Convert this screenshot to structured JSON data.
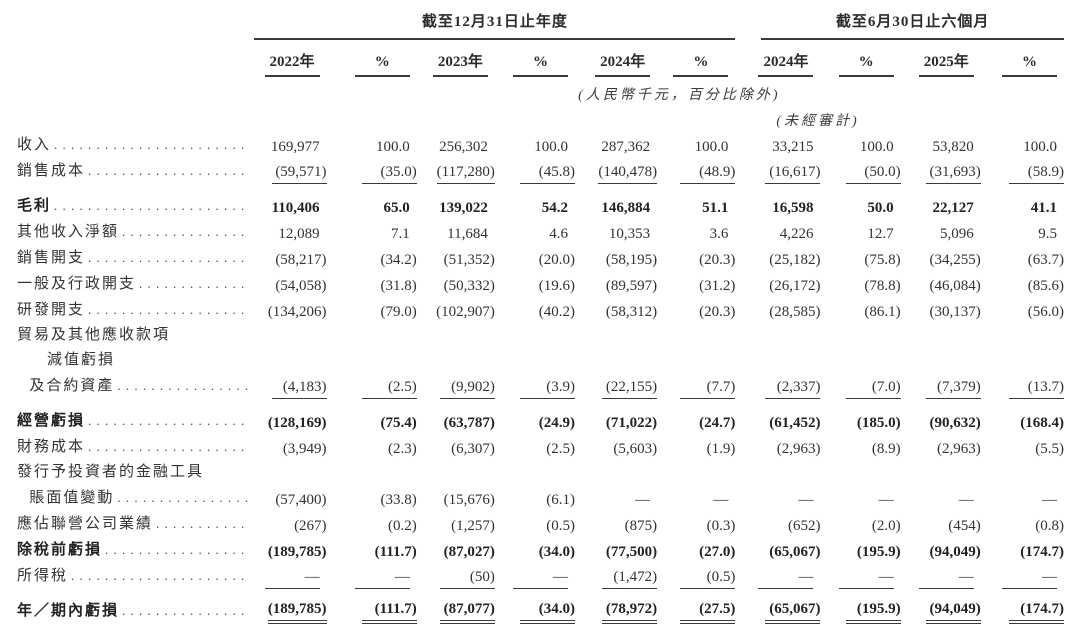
{
  "header": {
    "group_annual": "截至12月31日止年度",
    "group_interim": "截至6月30日止六個月",
    "columns": [
      "2022年",
      "%",
      "2023年",
      "%",
      "2024年",
      "%",
      "2024年",
      "%",
      "2025年",
      "%"
    ],
    "unit_note": "(人民幣千元，百分比除外)",
    "unaudited_note": "(未經審計)"
  },
  "chart_data": {
    "type": "table",
    "title": "綜合損益表概要",
    "unit": "人民幣千元，百分比除外",
    "column_groups": [
      "截至12月31日止年度",
      "截至6月30日止六個月"
    ],
    "columns": [
      "2022年",
      "%",
      "2023年",
      "%",
      "2024年",
      "%",
      "2024年(未經審計)",
      "%",
      "2025年",
      "%"
    ]
  },
  "rows": [
    {
      "label_lines": [
        {
          "text": "收入",
          "indent": 0,
          "dots": true
        }
      ],
      "bold": false,
      "underline": "none",
      "values": [
        "169,977",
        "100.0",
        "256,302",
        "100.0",
        "287,362",
        "100.0",
        "33,215",
        "100.0",
        "53,820",
        "100.0"
      ]
    },
    {
      "label_lines": [
        {
          "text": "銷售成本",
          "indent": 0,
          "dots": true
        }
      ],
      "bold": false,
      "underline": "single",
      "values": [
        "(59,571)",
        "(35.0)",
        "(117,280)",
        "(45.8)",
        "(140,478)",
        "(48.9)",
        "(16,617)",
        "(50.0)",
        "(31,693)",
        "(58.9)"
      ]
    },
    {
      "label_lines": [
        {
          "text": "毛利",
          "indent": 0,
          "dots": true
        }
      ],
      "bold": true,
      "underline": "none",
      "values": [
        "110,406",
        "65.0",
        "139,022",
        "54.2",
        "146,884",
        "51.1",
        "16,598",
        "50.0",
        "22,127",
        "41.1"
      ]
    },
    {
      "label_lines": [
        {
          "text": "其他收入淨額",
          "indent": 0,
          "dots": true
        }
      ],
      "bold": false,
      "underline": "none",
      "values": [
        "12,089",
        "7.1",
        "11,684",
        "4.6",
        "10,353",
        "3.6",
        "4,226",
        "12.7",
        "5,096",
        "9.5"
      ]
    },
    {
      "label_lines": [
        {
          "text": "銷售開支",
          "indent": 0,
          "dots": true
        }
      ],
      "bold": false,
      "underline": "none",
      "values": [
        "(58,217)",
        "(34.2)",
        "(51,352)",
        "(20.0)",
        "(58,195)",
        "(20.3)",
        "(25,182)",
        "(75.8)",
        "(34,255)",
        "(63.7)"
      ]
    },
    {
      "label_lines": [
        {
          "text": "一般及行政開支",
          "indent": 0,
          "dots": true
        }
      ],
      "bold": false,
      "underline": "none",
      "values": [
        "(54,058)",
        "(31.8)",
        "(50,332)",
        "(19.6)",
        "(89,597)",
        "(31.2)",
        "(26,172)",
        "(78.8)",
        "(46,084)",
        "(85.6)"
      ]
    },
    {
      "label_lines": [
        {
          "text": "研發開支",
          "indent": 0,
          "dots": true
        }
      ],
      "bold": false,
      "underline": "none",
      "values": [
        "(134,206)",
        "(79.0)",
        "(102,907)",
        "(40.2)",
        "(58,312)",
        "(20.3)",
        "(28,585)",
        "(86.1)",
        "(30,137)",
        "(56.0)"
      ]
    },
    {
      "label_lines": [
        {
          "text": "貿易及其他應收款項",
          "indent": 0,
          "dots": false
        },
        {
          "text": "減值虧損",
          "indent": 1,
          "dots": false
        },
        {
          "text": "及合約資產",
          "indent": 1,
          "dots": true
        }
      ],
      "bold": false,
      "underline": "single",
      "values": [
        "(4,183)",
        "(2.5)",
        "(9,902)",
        "(3.9)",
        "(22,155)",
        "(7.7)",
        "(2,337)",
        "(7.0)",
        "(7,379)",
        "(13.7)"
      ]
    },
    {
      "label_lines": [
        {
          "text": "經營虧損",
          "indent": 0,
          "dots": true
        }
      ],
      "bold": true,
      "underline": "none",
      "values": [
        "(128,169)",
        "(75.4)",
        "(63,787)",
        "(24.9)",
        "(71,022)",
        "(24.7)",
        "(61,452)",
        "(185.0)",
        "(90,632)",
        "(168.4)"
      ]
    },
    {
      "label_lines": [
        {
          "text": "財務成本",
          "indent": 0,
          "dots": true
        }
      ],
      "bold": false,
      "underline": "none",
      "values": [
        "(3,949)",
        "(2.3)",
        "(6,307)",
        "(2.5)",
        "(5,603)",
        "(1.9)",
        "(2,963)",
        "(8.9)",
        "(2,963)",
        "(5.5)"
      ]
    },
    {
      "label_lines": [
        {
          "text": "發行予投資者的金融工具",
          "indent": 0,
          "dots": false
        },
        {
          "text": "賬面值變動",
          "indent": 1,
          "dots": true
        }
      ],
      "bold": false,
      "underline": "none",
      "values": [
        "(57,400)",
        "(33.8)",
        "(15,676)",
        "(6.1)",
        "—",
        "—",
        "—",
        "—",
        "—",
        "—"
      ]
    },
    {
      "label_lines": [
        {
          "text": "應佔聯營公司業績",
          "indent": 0,
          "dots": true
        }
      ],
      "bold": false,
      "underline": "none",
      "values": [
        "(267)",
        "(0.2)",
        "(1,257)",
        "(0.5)",
        "(875)",
        "(0.3)",
        "(652)",
        "(2.0)",
        "(454)",
        "(0.8)"
      ]
    },
    {
      "label_lines": [
        {
          "text": "除稅前虧損",
          "indent": 0,
          "dots": true
        }
      ],
      "bold": true,
      "underline": "none",
      "values": [
        "(189,785)",
        "(111.7)",
        "(87,027)",
        "(34.0)",
        "(77,500)",
        "(27.0)",
        "(65,067)",
        "(195.9)",
        "(94,049)",
        "(174.7)"
      ]
    },
    {
      "label_lines": [
        {
          "text": "所得稅",
          "indent": 0,
          "dots": true
        }
      ],
      "bold": false,
      "underline": "single",
      "values": [
        "—",
        "—",
        "(50)",
        "—",
        "(1,472)",
        "(0.5)",
        "—",
        "—",
        "—",
        "—"
      ]
    },
    {
      "label_lines": [
        {
          "text": "年／期內虧損",
          "indent": 0,
          "dots": true
        }
      ],
      "bold": true,
      "underline": "double",
      "values": [
        "(189,785)",
        "(111.7)",
        "(87,077)",
        "(34.0)",
        "(78,972)",
        "(27.5)",
        "(65,067)",
        "(195.9)",
        "(94,049)",
        "(174.7)"
      ]
    }
  ]
}
